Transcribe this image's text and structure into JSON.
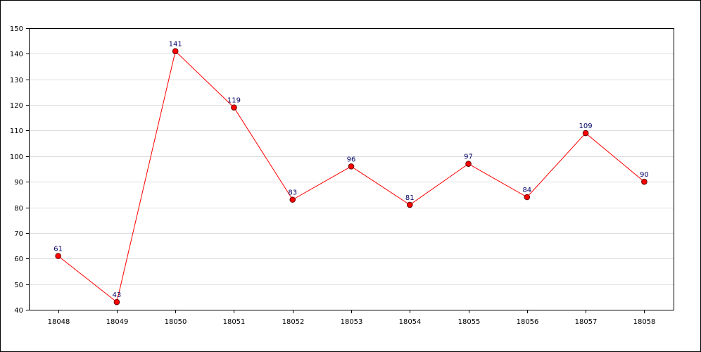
{
  "chart_data": {
    "type": "line",
    "title": "",
    "xlabel": "",
    "ylabel": "",
    "categories": [
      "18048",
      "18049",
      "18050",
      "18051",
      "18052",
      "18053",
      "18054",
      "18055",
      "18056",
      "18057",
      "18058"
    ],
    "series": [
      {
        "values": [
          61,
          43,
          141,
          119,
          83,
          96,
          81,
          97,
          84,
          109,
          90
        ]
      }
    ],
    "ylim": [
      40,
      150
    ],
    "yticks": [
      40,
      50,
      60,
      70,
      80,
      90,
      100,
      110,
      120,
      130,
      140,
      150
    ],
    "grid": "horizontal",
    "legend": "none",
    "colors": {
      "line": "#ff0000",
      "marker_fill": "#ff0000",
      "marker_stroke": "#660000",
      "data_label": "#000066",
      "grid": "#dddddd",
      "axis": "#000000"
    }
  }
}
